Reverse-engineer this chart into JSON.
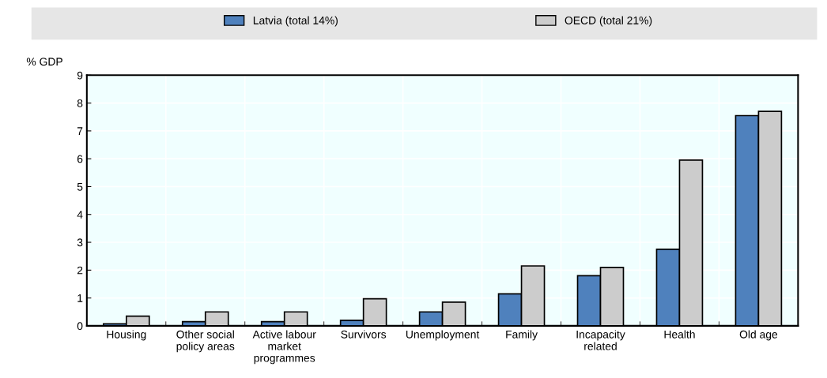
{
  "chart_data": {
    "type": "bar",
    "ylabel": "% GDP",
    "categories": [
      "Housing",
      "Other social\npolicy areas",
      "Active labour\nmarket\nprogrammes",
      "Survivors",
      "Unemployment",
      "Family",
      "Incapacity\nrelated",
      "Health",
      "Old age"
    ],
    "series": [
      {
        "name": "Latvia (total 14%)",
        "color": "#4f81bd",
        "values": [
          0.07,
          0.15,
          0.15,
          0.2,
          0.5,
          1.15,
          1.8,
          2.75,
          7.55
        ]
      },
      {
        "name": "OECD (total 21%)",
        "color": "#cccccc",
        "values": [
          0.35,
          0.5,
          0.5,
          0.97,
          0.85,
          2.15,
          2.1,
          5.95,
          7.7
        ]
      }
    ],
    "ylim": [
      0,
      9
    ],
    "yticks": [
      0,
      1,
      2,
      3,
      4,
      5,
      6,
      7,
      8,
      9
    ],
    "grid": true,
    "legend": "top"
  }
}
